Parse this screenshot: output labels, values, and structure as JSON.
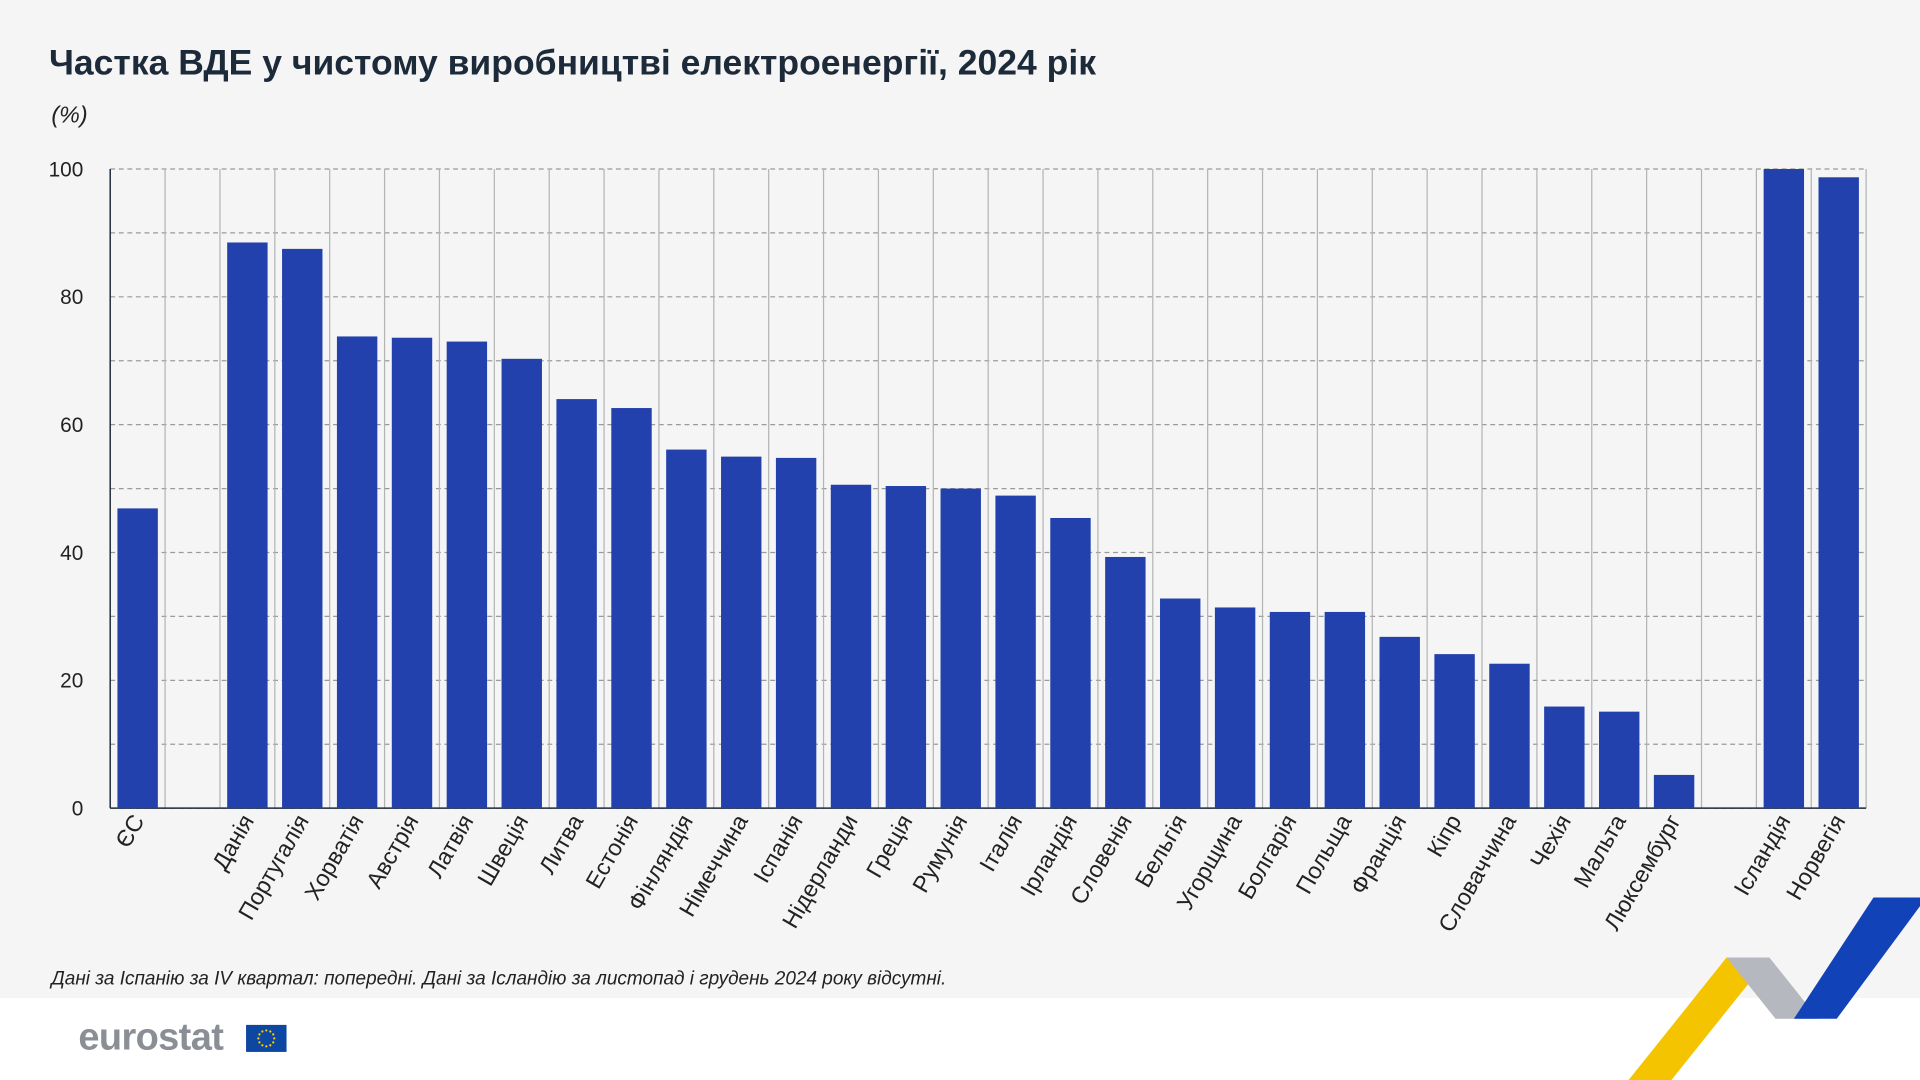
{
  "title": "Частка ВДЕ у чистому виробництві електроенергії, 2024 рік",
  "unit": "(%)",
  "note": "Дані за Іспанію за IV квартал: попередні. Дані за Ісландію за листопад і грудень 2024 року відсутні.",
  "logo": "eurostat",
  "colors": {
    "bar": "#2241ad",
    "background": "#f5f5f5",
    "grid": "#a0a0a0"
  },
  "chart_data": {
    "type": "bar",
    "title": "Частка ВДЕ у чистому виробництві електроенергії, 2024 рік",
    "ylabel": "(%)",
    "ylim": [
      0,
      100
    ],
    "yticks": [
      0,
      20,
      40,
      60,
      80,
      100
    ],
    "grid": true,
    "categories": [
      "ЄС",
      "",
      "Данія",
      "Португалія",
      "Хорватія",
      "Австрія",
      "Латвія",
      "Швеція",
      "Литва",
      "Естонія",
      "Фінляндія",
      "Німеччина",
      "Іспанія",
      "Нідерланди",
      "Греція",
      "Румунія",
      "Італія",
      "Ірландія",
      "Словенія",
      "Бельгія",
      "Угорщина",
      "Болгарія",
      "Польща",
      "Франція",
      "Кіпр",
      "Словаччина",
      "Чехія",
      "Мальта",
      "Люксембург",
      "",
      "Ісландія",
      "Норвегія"
    ],
    "values": [
      46.9,
      null,
      88.5,
      87.5,
      73.8,
      73.6,
      73.0,
      70.3,
      64.0,
      62.6,
      56.1,
      55.0,
      54.8,
      50.6,
      50.4,
      50.0,
      48.9,
      45.4,
      39.3,
      32.8,
      31.4,
      30.7,
      30.7,
      26.8,
      24.1,
      22.6,
      15.9,
      15.1,
      5.2,
      null,
      100.0,
      98.7
    ]
  }
}
